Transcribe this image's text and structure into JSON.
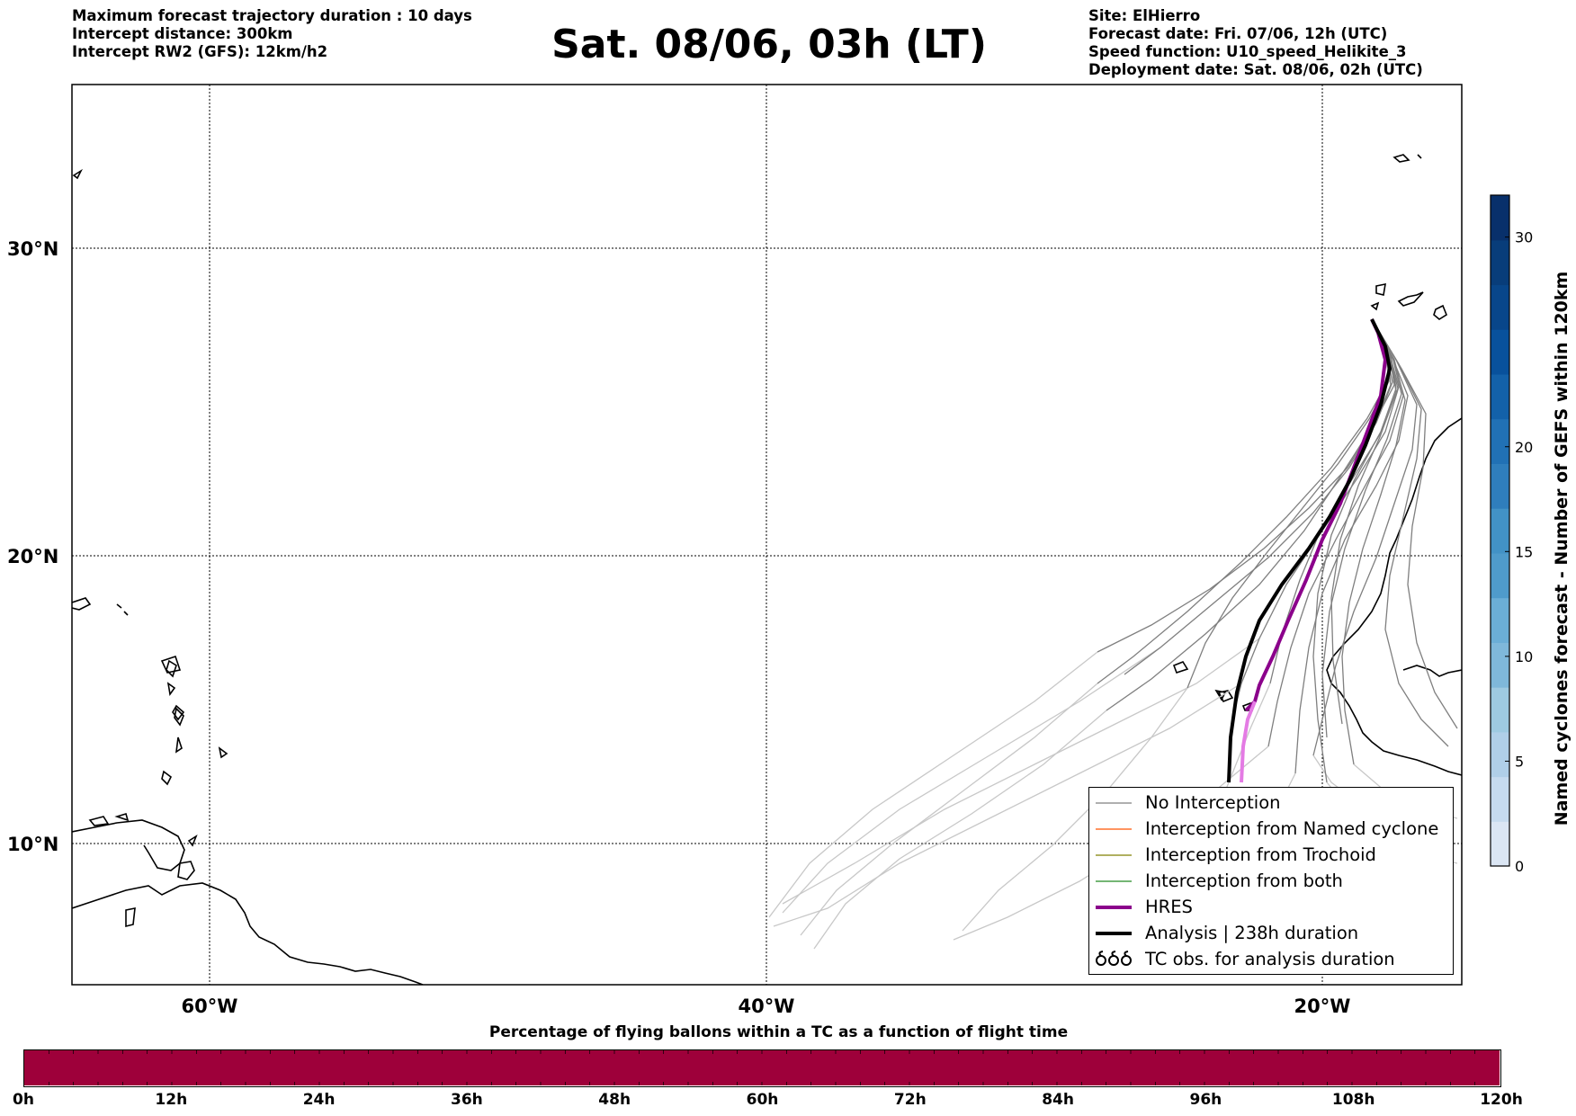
{
  "header": {
    "left": [
      "Maximum forecast trajectory duration : 10 days",
      "Intercept distance: 300km",
      "Intercept RW2 (GFS):  12km/h2"
    ],
    "title": "Sat. 08/06, 03h (LT)",
    "right": [
      "Site: ElHierro",
      "Forecast date: Fri. 07/06, 12h (UTC)",
      "Speed function: U10_speed_Helikite_3",
      "Deployment date: Sat. 08/06, 02h (UTC)"
    ]
  },
  "map": {
    "lat_labels": [
      "30°N",
      "20°N",
      "10°N"
    ],
    "lon_labels": [
      "60°W",
      "40°W",
      "20°W"
    ]
  },
  "legend": {
    "items": [
      {
        "label": "No Interception",
        "color": "#7f7f7f"
      },
      {
        "label": "Interception from Named cyclone",
        "color": "#ff5500"
      },
      {
        "label": "Interception from Trochoid",
        "color": "#808000"
      },
      {
        "label": "Interception from both",
        "color": "#228b22"
      },
      {
        "label": "HRES",
        "color": "#8b008b"
      },
      {
        "label": "Analysis | 238h duration",
        "color": "#000000"
      },
      {
        "label": "TC obs. for analysis duration",
        "symbol": "cyclone-symbols"
      }
    ]
  },
  "colorbar": {
    "title": "Named cyclones forecast - Number of GEFS within 120km",
    "ticks": [
      "0",
      "5",
      "10",
      "15",
      "20",
      "30"
    ],
    "colors": [
      "#dbe6f4",
      "#c6dbef",
      "#b0cfe8",
      "#9ecae1",
      "#7fb8da",
      "#6baed6",
      "#4f9bcb",
      "#4292c6",
      "#2f7ebc",
      "#2171b5",
      "#1361a9",
      "#08519c",
      "#08468a",
      "#083d7a",
      "#08306b"
    ]
  },
  "time_bar": {
    "title": "Percentage of flying ballons within a TC as a function of flight time",
    "fill_color": "#9e003a",
    "ticks": [
      "0h",
      "12h",
      "24h",
      "36h",
      "48h",
      "60h",
      "72h",
      "84h",
      "96h",
      "108h",
      "120h"
    ]
  }
}
